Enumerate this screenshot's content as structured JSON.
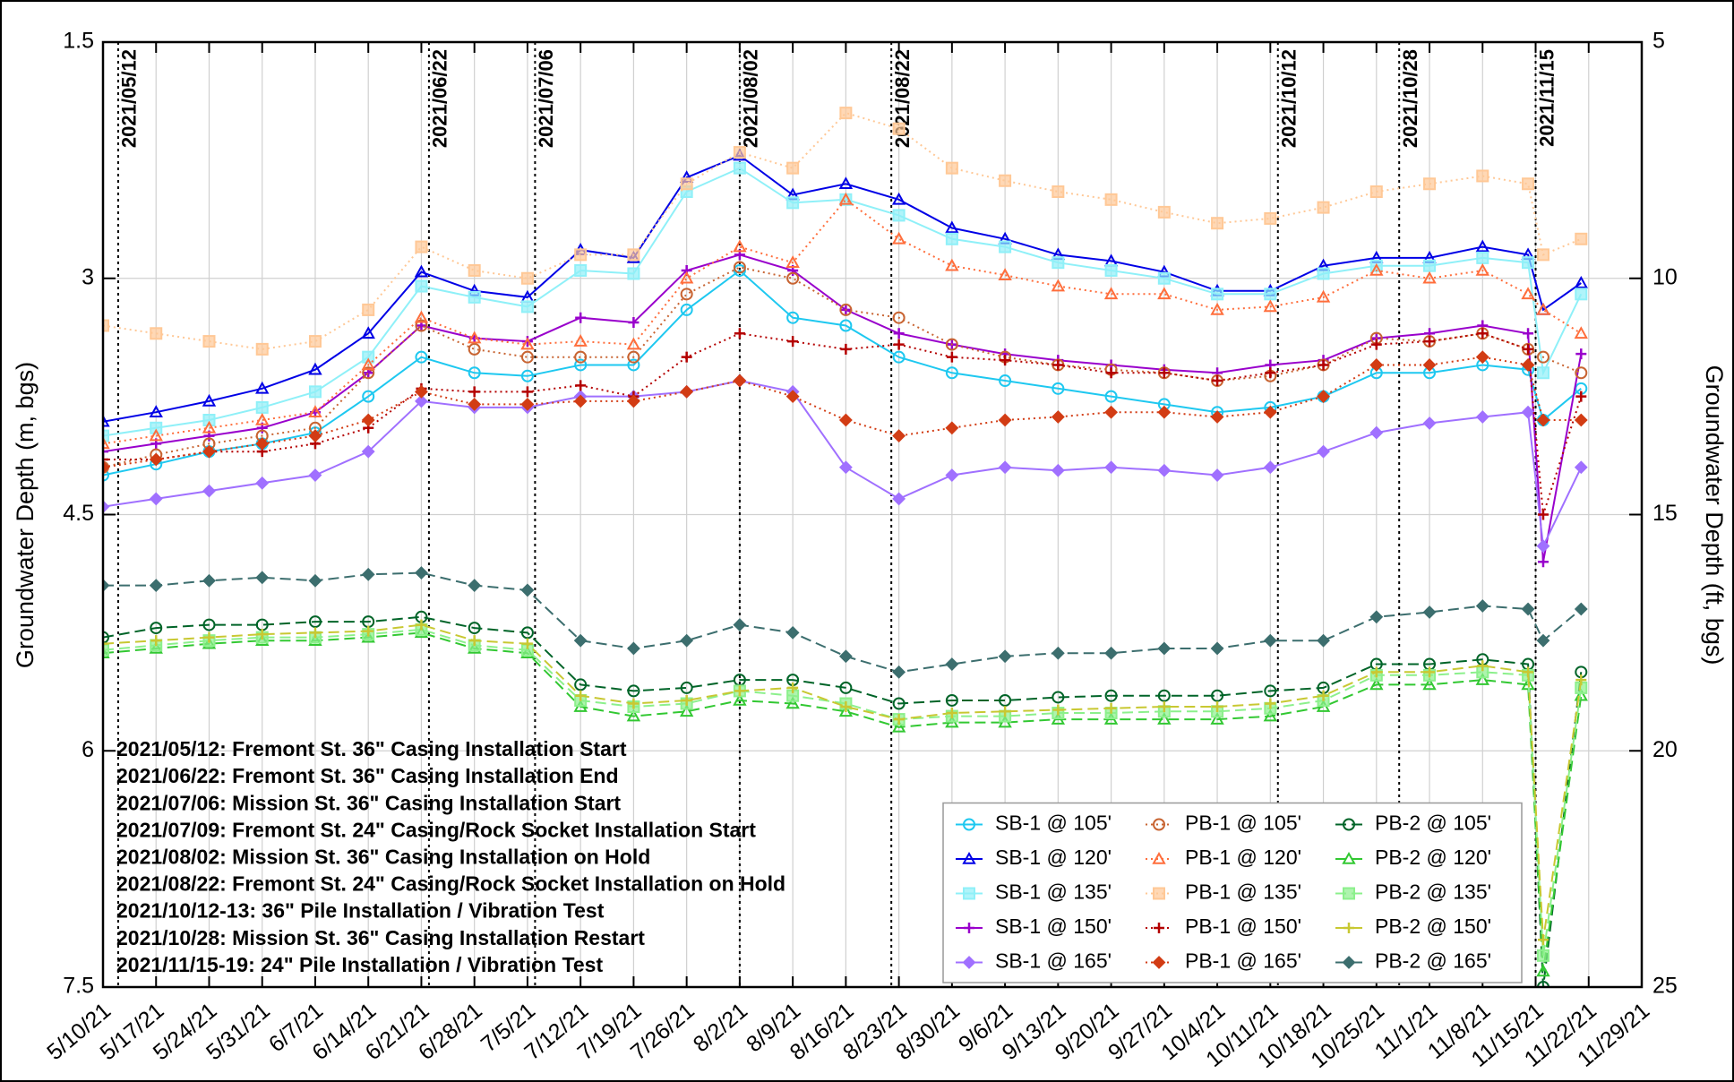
{
  "chart_data": {
    "type": "line",
    "y_label": "Groundwater Depth (m, bgs)",
    "y2_label": "Groundwater Depth (ft, bgs)",
    "ylim": [
      1.5,
      7.5
    ],
    "yticks": [
      1.5,
      3,
      4.5,
      6,
      7.5
    ],
    "y_inverted": true,
    "y2lim": [
      5,
      25
    ],
    "y2ticks": [
      5,
      10,
      15,
      20,
      25
    ],
    "y2_inverted": true,
    "xlim": [
      "2021-05-10",
      "2021-11-29"
    ],
    "xticks": [
      {
        "value": "2021-05-10",
        "label": "5/10/21"
      },
      {
        "value": "2021-05-17",
        "label": "5/17/21"
      },
      {
        "value": "2021-05-24",
        "label": "5/24/21"
      },
      {
        "value": "2021-05-31",
        "label": "5/31/21"
      },
      {
        "value": "2021-06-07",
        "label": "6/7/21"
      },
      {
        "value": "2021-06-14",
        "label": "6/14/21"
      },
      {
        "value": "2021-06-21",
        "label": "6/21/21"
      },
      {
        "value": "2021-06-28",
        "label": "6/28/21"
      },
      {
        "value": "2021-07-05",
        "label": "7/5/21"
      },
      {
        "value": "2021-07-12",
        "label": "7/12/21"
      },
      {
        "value": "2021-07-19",
        "label": "7/19/21"
      },
      {
        "value": "2021-07-26",
        "label": "7/26/21"
      },
      {
        "value": "2021-08-02",
        "label": "8/2/21"
      },
      {
        "value": "2021-08-09",
        "label": "8/9/21"
      },
      {
        "value": "2021-08-16",
        "label": "8/16/21"
      },
      {
        "value": "2021-08-23",
        "label": "8/23/21"
      },
      {
        "value": "2021-08-30",
        "label": "8/30/21"
      },
      {
        "value": "2021-09-06",
        "label": "9/6/21"
      },
      {
        "value": "2021-09-13",
        "label": "9/13/21"
      },
      {
        "value": "2021-09-20",
        "label": "9/20/21"
      },
      {
        "value": "2021-09-27",
        "label": "9/27/21"
      },
      {
        "value": "2021-10-04",
        "label": "10/4/21"
      },
      {
        "value": "2021-10-11",
        "label": "10/11/21"
      },
      {
        "value": "2021-10-18",
        "label": "10/18/21"
      },
      {
        "value": "2021-10-25",
        "label": "10/25/21"
      },
      {
        "value": "2021-11-01",
        "label": "11/1/21"
      },
      {
        "value": "2021-11-08",
        "label": "11/8/21"
      },
      {
        "value": "2021-11-15",
        "label": "11/15/21"
      },
      {
        "value": "2021-11-22",
        "label": "11/22/21"
      },
      {
        "value": "2021-11-29",
        "label": "11/29/21"
      }
    ],
    "grid": true,
    "x": [
      "2021-05-10",
      "2021-05-17",
      "2021-05-24",
      "2021-05-31",
      "2021-06-07",
      "2021-06-14",
      "2021-06-21",
      "2021-06-28",
      "2021-07-05",
      "2021-07-12",
      "2021-07-19",
      "2021-07-26",
      "2021-08-02",
      "2021-08-09",
      "2021-08-16",
      "2021-08-23",
      "2021-08-30",
      "2021-09-06",
      "2021-09-13",
      "2021-09-20",
      "2021-09-27",
      "2021-10-04",
      "2021-10-11",
      "2021-10-18",
      "2021-10-25",
      "2021-11-01",
      "2021-11-08",
      "2021-11-14",
      "2021-11-16",
      "2021-11-21"
    ],
    "series": [
      {
        "name": "SB-1 @ 105'",
        "color": "#1ec8f0",
        "marker": "circle",
        "dash": "solid",
        "values": [
          4.25,
          4.18,
          4.1,
          4.05,
          3.98,
          3.75,
          3.5,
          3.6,
          3.62,
          3.55,
          3.55,
          3.2,
          2.95,
          3.25,
          3.3,
          3.5,
          3.6,
          3.65,
          3.7,
          3.75,
          3.8,
          3.85,
          3.82,
          3.75,
          3.6,
          3.6,
          3.55,
          3.58,
          3.9,
          3.7
        ]
      },
      {
        "name": "SB-1 @ 120'",
        "color": "#0000e6",
        "marker": "triangle",
        "dash": "solid",
        "values": [
          3.91,
          3.85,
          3.78,
          3.7,
          3.58,
          3.35,
          2.96,
          3.08,
          3.12,
          2.82,
          2.87,
          2.36,
          2.22,
          2.47,
          2.4,
          2.5,
          2.68,
          2.75,
          2.85,
          2.89,
          2.96,
          3.08,
          3.08,
          2.92,
          2.87,
          2.87,
          2.8,
          2.85,
          3.2,
          3.03
        ]
      },
      {
        "name": "SB-1 @ 135'",
        "color": "#8ff0f8",
        "marker": "square",
        "dash": "solid",
        "values": [
          4.0,
          3.95,
          3.9,
          3.82,
          3.72,
          3.5,
          3.05,
          3.12,
          3.18,
          2.95,
          2.97,
          2.45,
          2.3,
          2.52,
          2.5,
          2.6,
          2.75,
          2.8,
          2.9,
          2.95,
          3.0,
          3.1,
          3.1,
          2.97,
          2.92,
          2.92,
          2.87,
          2.9,
          3.6,
          3.1
        ]
      },
      {
        "name": "SB-1 @ 150'",
        "color": "#9900cc",
        "marker": "plus",
        "dash": "solid",
        "values": [
          4.1,
          4.05,
          4.0,
          3.95,
          3.85,
          3.6,
          3.3,
          3.38,
          3.4,
          3.25,
          3.28,
          2.95,
          2.85,
          2.95,
          3.2,
          3.35,
          3.42,
          3.48,
          3.52,
          3.55,
          3.58,
          3.6,
          3.55,
          3.52,
          3.38,
          3.35,
          3.3,
          3.35,
          4.8,
          3.48
        ]
      },
      {
        "name": "SB-1 @ 165'",
        "color": "#a070ff",
        "marker": "diamond",
        "dash": "solid",
        "values": [
          4.45,
          4.4,
          4.35,
          4.3,
          4.25,
          4.1,
          3.78,
          3.82,
          3.82,
          3.75,
          3.75,
          3.72,
          3.65,
          3.72,
          4.2,
          4.4,
          4.25,
          4.2,
          4.22,
          4.2,
          4.22,
          4.25,
          4.2,
          4.1,
          3.98,
          3.92,
          3.88,
          3.85,
          4.7,
          4.2
        ]
      },
      {
        "name": "PB-1 @ 105'",
        "color": "#c86432",
        "marker": "circle",
        "dash": "dotted",
        "values": [
          4.2,
          4.12,
          4.05,
          4.0,
          3.95,
          3.6,
          3.3,
          3.45,
          3.5,
          3.5,
          3.5,
          3.1,
          2.93,
          3.0,
          3.2,
          3.25,
          3.42,
          3.5,
          3.55,
          3.58,
          3.6,
          3.65,
          3.62,
          3.55,
          3.38,
          3.4,
          3.35,
          3.45,
          3.5,
          3.6
        ]
      },
      {
        "name": "PB-1 @ 120'",
        "color": "#ff6e3c",
        "marker": "triangle",
        "dash": "dotted",
        "values": [
          4.05,
          4.0,
          3.95,
          3.9,
          3.85,
          3.55,
          3.25,
          3.38,
          3.42,
          3.4,
          3.42,
          3.0,
          2.8,
          2.9,
          2.5,
          2.75,
          2.92,
          2.98,
          3.05,
          3.1,
          3.1,
          3.2,
          3.18,
          3.12,
          2.95,
          3.0,
          2.95,
          3.1,
          3.2,
          3.35
        ]
      },
      {
        "name": "PB-1 @ 135'",
        "color": "#ffc896",
        "marker": "square",
        "dash": "dotted",
        "values": [
          3.3,
          3.35,
          3.4,
          3.45,
          3.4,
          3.2,
          2.8,
          2.95,
          3.0,
          2.85,
          2.85,
          2.4,
          2.2,
          2.3,
          1.95,
          2.05,
          2.3,
          2.38,
          2.45,
          2.5,
          2.58,
          2.65,
          2.62,
          2.55,
          2.45,
          2.4,
          2.35,
          2.4,
          2.85,
          2.75
        ]
      },
      {
        "name": "PB-1 @ 150'",
        "color": "#b40000",
        "marker": "plus",
        "dash": "dotted",
        "values": [
          4.15,
          4.15,
          4.1,
          4.1,
          4.05,
          3.95,
          3.7,
          3.72,
          3.72,
          3.68,
          3.75,
          3.5,
          3.35,
          3.4,
          3.45,
          3.42,
          3.5,
          3.52,
          3.55,
          3.6,
          3.6,
          3.65,
          3.6,
          3.55,
          3.42,
          3.4,
          3.35,
          3.45,
          4.5,
          3.75
        ]
      },
      {
        "name": "PB-1 @ 165'",
        "color": "#d23c14",
        "marker": "diamond",
        "dash": "dotted",
        "values": [
          4.2,
          4.15,
          4.1,
          4.05,
          4.0,
          3.9,
          3.72,
          3.8,
          3.8,
          3.78,
          3.78,
          3.72,
          3.65,
          3.75,
          3.9,
          4.0,
          3.95,
          3.9,
          3.88,
          3.85,
          3.85,
          3.88,
          3.85,
          3.75,
          3.55,
          3.55,
          3.5,
          3.55,
          3.9,
          3.9
        ]
      },
      {
        "name": "PB-2 @ 105'",
        "color": "#006428",
        "marker": "circle",
        "dash": "dashed",
        "values": [
          5.28,
          5.22,
          5.2,
          5.2,
          5.18,
          5.18,
          5.15,
          5.22,
          5.25,
          5.58,
          5.62,
          5.6,
          5.55,
          5.55,
          5.6,
          5.7,
          5.68,
          5.68,
          5.66,
          5.65,
          5.65,
          5.65,
          5.62,
          5.6,
          5.45,
          5.45,
          5.42,
          5.45,
          7.5,
          5.5
        ]
      },
      {
        "name": "PB-2 @ 120'",
        "color": "#32c832",
        "marker": "triangle",
        "dash": "dashed",
        "values": [
          5.38,
          5.35,
          5.32,
          5.3,
          5.3,
          5.28,
          5.25,
          5.35,
          5.38,
          5.72,
          5.78,
          5.75,
          5.68,
          5.7,
          5.75,
          5.85,
          5.82,
          5.82,
          5.8,
          5.8,
          5.8,
          5.8,
          5.78,
          5.72,
          5.58,
          5.58,
          5.55,
          5.58,
          7.4,
          5.65
        ]
      },
      {
        "name": "PB-2 @ 135'",
        "color": "#8cf08c",
        "marker": "square",
        "dash": "dashed",
        "values": [
          5.36,
          5.33,
          5.3,
          5.28,
          5.28,
          5.26,
          5.23,
          5.33,
          5.36,
          5.68,
          5.72,
          5.7,
          5.62,
          5.65,
          5.7,
          5.8,
          5.78,
          5.78,
          5.76,
          5.76,
          5.75,
          5.75,
          5.73,
          5.68,
          5.52,
          5.52,
          5.5,
          5.52,
          7.3,
          5.6
        ]
      },
      {
        "name": "PB-2 @ 150'",
        "color": "#c8c832",
        "marker": "plus",
        "dash": "dashed",
        "values": [
          5.32,
          5.3,
          5.28,
          5.26,
          5.25,
          5.24,
          5.2,
          5.3,
          5.32,
          5.65,
          5.7,
          5.68,
          5.62,
          5.6,
          5.72,
          5.8,
          5.76,
          5.75,
          5.74,
          5.73,
          5.72,
          5.72,
          5.7,
          5.65,
          5.5,
          5.5,
          5.46,
          5.5,
          7.2,
          5.55
        ]
      },
      {
        "name": "PB-2 @ 165'",
        "color": "#3c6e6e",
        "marker": "diamond",
        "dash": "dashed",
        "values": [
          4.95,
          4.95,
          4.92,
          4.9,
          4.92,
          4.88,
          4.87,
          4.95,
          4.98,
          5.3,
          5.35,
          5.3,
          5.2,
          5.25,
          5.4,
          5.5,
          5.45,
          5.4,
          5.38,
          5.38,
          5.35,
          5.35,
          5.3,
          5.3,
          5.15,
          5.12,
          5.08,
          5.1,
          5.3,
          5.1
        ]
      }
    ],
    "events": [
      {
        "x": "2021-05-12",
        "label": "2021/05/12"
      },
      {
        "x": "2021-06-22",
        "label": "2021/06/22"
      },
      {
        "x": "2021-07-06",
        "label": "2021/07/06"
      },
      {
        "x": "2021-08-02",
        "label": "2021/08/02"
      },
      {
        "x": "2021-08-22",
        "label": "2021/08/22"
      },
      {
        "x": "2021-10-12",
        "label": "2021/10/12"
      },
      {
        "x": "2021-10-28",
        "label": "2021/10/28"
      },
      {
        "x": "2021-11-15",
        "label": "2021/11/15"
      }
    ],
    "notes": [
      "2021/05/12: Fremont St. 36\" Casing Installation Start",
      "2021/06/22: Fremont St. 36\" Casing Installation End",
      "2021/07/06: Mission St.  36\" Casing Installation Start",
      "2021/07/09: Fremont St. 24\" Casing/Rock Socket Installation Start",
      "2021/08/02: Mission St.  36\" Casing Installation on Hold",
      "2021/08/22: Fremont St. 24\" Casing/Rock Socket Installation on Hold",
      "2021/10/12-13: 36\" Pile Installation / Vibration Test",
      "2021/10/28: Mission St.  36\" Casing Installation Restart",
      "2021/11/15-19: 24\" Pile Installation / Vibration Test"
    ],
    "legend": "lower right"
  }
}
